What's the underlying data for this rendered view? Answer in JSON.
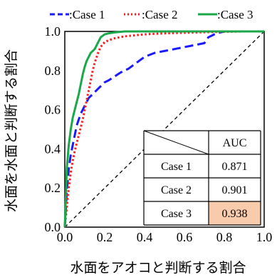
{
  "chart_data": {
    "type": "line",
    "xlabel": "水面をアオコと判断する割合",
    "ylabel": "水面を水面と判断する割合",
    "xlim": [
      0,
      1
    ],
    "ylim": [
      0,
      1
    ],
    "x_ticks": [
      "0.0",
      "0.2",
      "0.4",
      "0.6",
      "0.8",
      "1.0"
    ],
    "y_ticks": [
      "0.0",
      "0.2",
      "0.4",
      "0.6",
      "0.8",
      "1.0"
    ],
    "grid": false,
    "legend": {
      "placement": "top",
      "entries": [
        ":Case 1",
        ":Case 2",
        ":Case 3"
      ]
    },
    "series": [
      {
        "name": "Case 1",
        "color": "#1a1aff",
        "style": "dashed",
        "x": [
          0,
          0.01,
          0.02,
          0.03,
          0.04,
          0.05,
          0.06,
          0.08,
          0.1,
          0.12,
          0.14,
          0.16,
          0.18,
          0.2,
          0.22,
          0.25,
          0.28,
          0.32,
          0.36,
          0.4,
          0.45,
          0.5,
          0.55,
          0.6,
          0.65,
          0.7,
          0.72,
          0.74,
          0.76,
          0.78,
          0.8,
          0.85,
          0.9,
          0.95,
          1.0
        ],
        "y": [
          0,
          0.18,
          0.3,
          0.37,
          0.42,
          0.47,
          0.52,
          0.58,
          0.62,
          0.66,
          0.68,
          0.7,
          0.72,
          0.74,
          0.75,
          0.77,
          0.79,
          0.81,
          0.84,
          0.87,
          0.89,
          0.9,
          0.91,
          0.92,
          0.93,
          0.94,
          0.97,
          0.98,
          0.99,
          0.995,
          1.0,
          1.0,
          1.0,
          1.0,
          1.0
        ]
      },
      {
        "name": "Case 2",
        "color": "#ff1a1a",
        "style": "dotted",
        "x": [
          0,
          0.01,
          0.02,
          0.03,
          0.04,
          0.05,
          0.06,
          0.07,
          0.08,
          0.09,
          0.1,
          0.11,
          0.12,
          0.13,
          0.14,
          0.15,
          0.16,
          0.17,
          0.18,
          0.19,
          0.2,
          0.22,
          0.25,
          0.3,
          0.35,
          0.4,
          0.5,
          0.6,
          0.7,
          0.8,
          0.9,
          1.0
        ],
        "y": [
          0,
          0.1,
          0.2,
          0.28,
          0.34,
          0.39,
          0.43,
          0.47,
          0.51,
          0.55,
          0.6,
          0.65,
          0.7,
          0.75,
          0.8,
          0.84,
          0.87,
          0.9,
          0.92,
          0.935,
          0.945,
          0.955,
          0.965,
          0.975,
          0.98,
          0.985,
          0.99,
          0.993,
          0.996,
          0.998,
          1.0,
          1.0
        ]
      },
      {
        "name": "Case 3",
        "color": "#1aa84a",
        "style": "solid",
        "x": [
          0,
          0.01,
          0.02,
          0.03,
          0.04,
          0.05,
          0.06,
          0.07,
          0.08,
          0.09,
          0.1,
          0.11,
          0.12,
          0.13,
          0.14,
          0.15,
          0.16,
          0.17,
          0.18,
          0.2,
          0.22,
          0.25,
          0.3,
          0.4,
          0.5,
          0.6,
          0.7,
          0.8,
          0.9,
          1.0
        ],
        "y": [
          0,
          0.3,
          0.42,
          0.5,
          0.56,
          0.6,
          0.64,
          0.68,
          0.73,
          0.78,
          0.82,
          0.85,
          0.87,
          0.89,
          0.9,
          0.91,
          0.93,
          0.95,
          0.97,
          0.985,
          0.99,
          0.995,
          1.0,
          1.0,
          1.0,
          1.0,
          1.0,
          1.0,
          1.0,
          1.0
        ]
      }
    ],
    "reference_line": {
      "x": [
        0,
        1
      ],
      "y": [
        0,
        1
      ],
      "style": "dashed",
      "color": "#000000"
    },
    "table": {
      "header": [
        "",
        "AUC"
      ],
      "rows": [
        {
          "label": "Case 1",
          "value": "0.871",
          "highlight": false
        },
        {
          "label": "Case 2",
          "value": "0.901",
          "highlight": false
        },
        {
          "label": "Case 3",
          "value": "0.938",
          "highlight": true
        }
      ],
      "highlight_color": "#f8cbad"
    }
  }
}
